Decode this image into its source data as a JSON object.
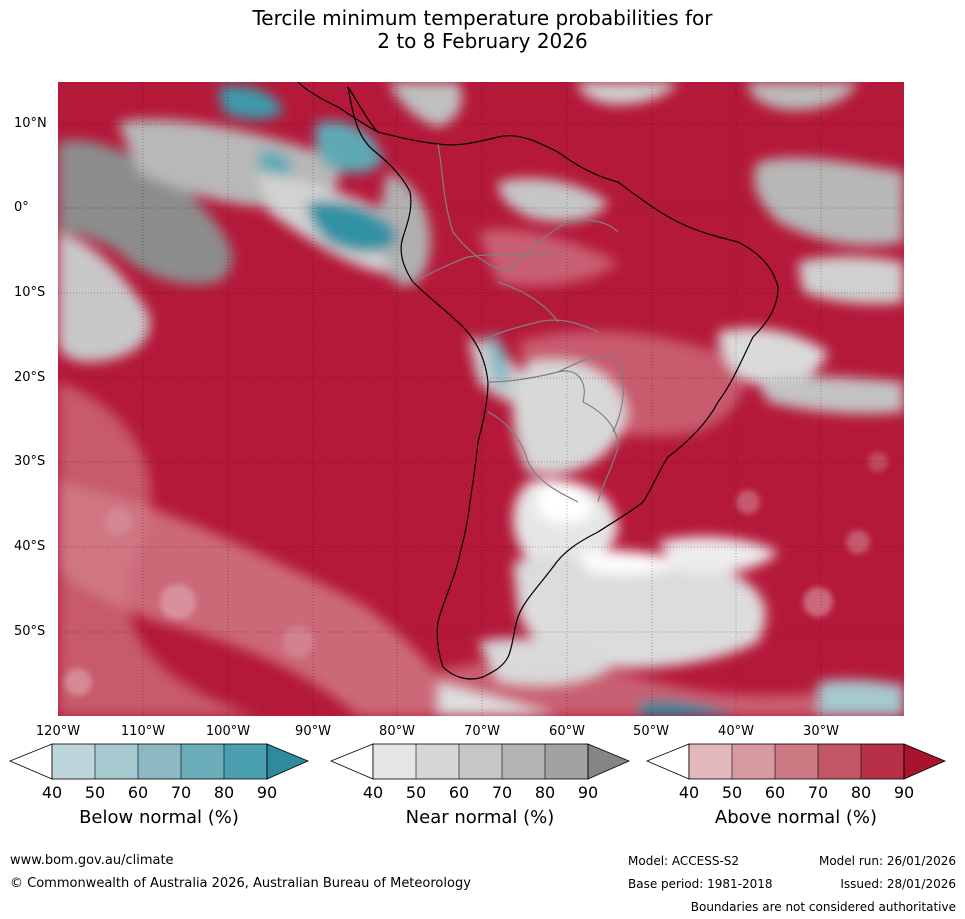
{
  "title": {
    "line1": "Tercile minimum temperature probabilities for",
    "line2": "2 to 8 February 2026"
  },
  "map": {
    "lat_labels": [
      "10°N",
      "0°",
      "10°S",
      "20°S",
      "30°S",
      "40°S",
      "50°S"
    ],
    "lon_labels": [
      "120°W",
      "110°W",
      "100°W",
      "90°W",
      "80°W",
      "70°W",
      "60°W",
      "50°W",
      "40°W",
      "30°W"
    ],
    "colors": {
      "above_dominant": "#b5193a",
      "near_dominant": "#9e9e9e",
      "below_dominant": "#3d9aaa"
    }
  },
  "colorbars": {
    "ticks": [
      "40",
      "50",
      "60",
      "70",
      "80",
      "90"
    ],
    "below": {
      "title": "Below normal (%)",
      "colors": [
        "#bdd6dc",
        "#a6c9cf",
        "#8cb8c3",
        "#6aadb8",
        "#4aa0b0",
        "#2e8a9c"
      ]
    },
    "near": {
      "title": "Near normal (%)",
      "colors": [
        "#e6e6e6",
        "#d6d6d6",
        "#c6c6c6",
        "#b4b4b4",
        "#a2a2a2",
        "#858585"
      ]
    },
    "above": {
      "title": "Above normal (%)",
      "colors": [
        "#e3b8bd",
        "#d79aa1",
        "#cb7a84",
        "#c25566",
        "#b82f48",
        "#a8142e"
      ]
    }
  },
  "footer": {
    "website": "www.bom.gov.au/climate",
    "copyright": "© Commonwealth of Australia 2026, Australian Bureau of Meteorology",
    "model": "Model: ACCESS-S2",
    "base_period": "Base period: 1981-2018",
    "model_run": "Model run: 26/01/2026",
    "issued": "Issued: 28/01/2026",
    "disclaimer": "Boundaries are not considered authoritative"
  }
}
